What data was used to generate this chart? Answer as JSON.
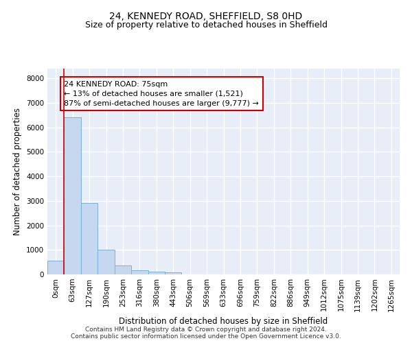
{
  "title": "24, KENNEDY ROAD, SHEFFIELD, S8 0HD",
  "subtitle": "Size of property relative to detached houses in Sheffield",
  "xlabel": "Distribution of detached houses by size in Sheffield",
  "ylabel": "Number of detached properties",
  "bar_color": "#c5d8ef",
  "bar_edge_color": "#7bafd4",
  "bar_heights": [
    560,
    6420,
    2920,
    1000,
    370,
    160,
    110,
    80,
    0,
    0,
    0,
    0,
    0,
    0,
    0,
    0,
    0,
    0,
    0,
    0,
    0
  ],
  "bar_labels": [
    "0sqm",
    "63sqm",
    "127sqm",
    "190sqm",
    "253sqm",
    "316sqm",
    "380sqm",
    "443sqm",
    "506sqm",
    "569sqm",
    "633sqm",
    "696sqm",
    "759sqm",
    "822sqm",
    "886sqm",
    "949sqm",
    "1012sqm",
    "1075sqm",
    "1139sqm",
    "1202sqm",
    "1265sqm"
  ],
  "ylim": [
    0,
    8400
  ],
  "yticks": [
    0,
    1000,
    2000,
    3000,
    4000,
    5000,
    6000,
    7000,
    8000
  ],
  "vline_x_position": 0.5,
  "vline_color": "#cc0000",
  "annotation_text": "24 KENNEDY ROAD: 75sqm\n← 13% of detached houses are smaller (1,521)\n87% of semi-detached houses are larger (9,777) →",
  "annotation_box_color": "#ffffff",
  "annotation_box_edge": "#cc0000",
  "background_color": "#e8eef8",
  "grid_color": "#ffffff",
  "footer_line1": "Contains HM Land Registry data © Crown copyright and database right 2024.",
  "footer_line2": "Contains public sector information licensed under the Open Government Licence v3.0.",
  "title_fontsize": 10,
  "subtitle_fontsize": 9,
  "axis_label_fontsize": 8.5,
  "tick_fontsize": 7.5,
  "annotation_fontsize": 8,
  "footer_fontsize": 6.5
}
